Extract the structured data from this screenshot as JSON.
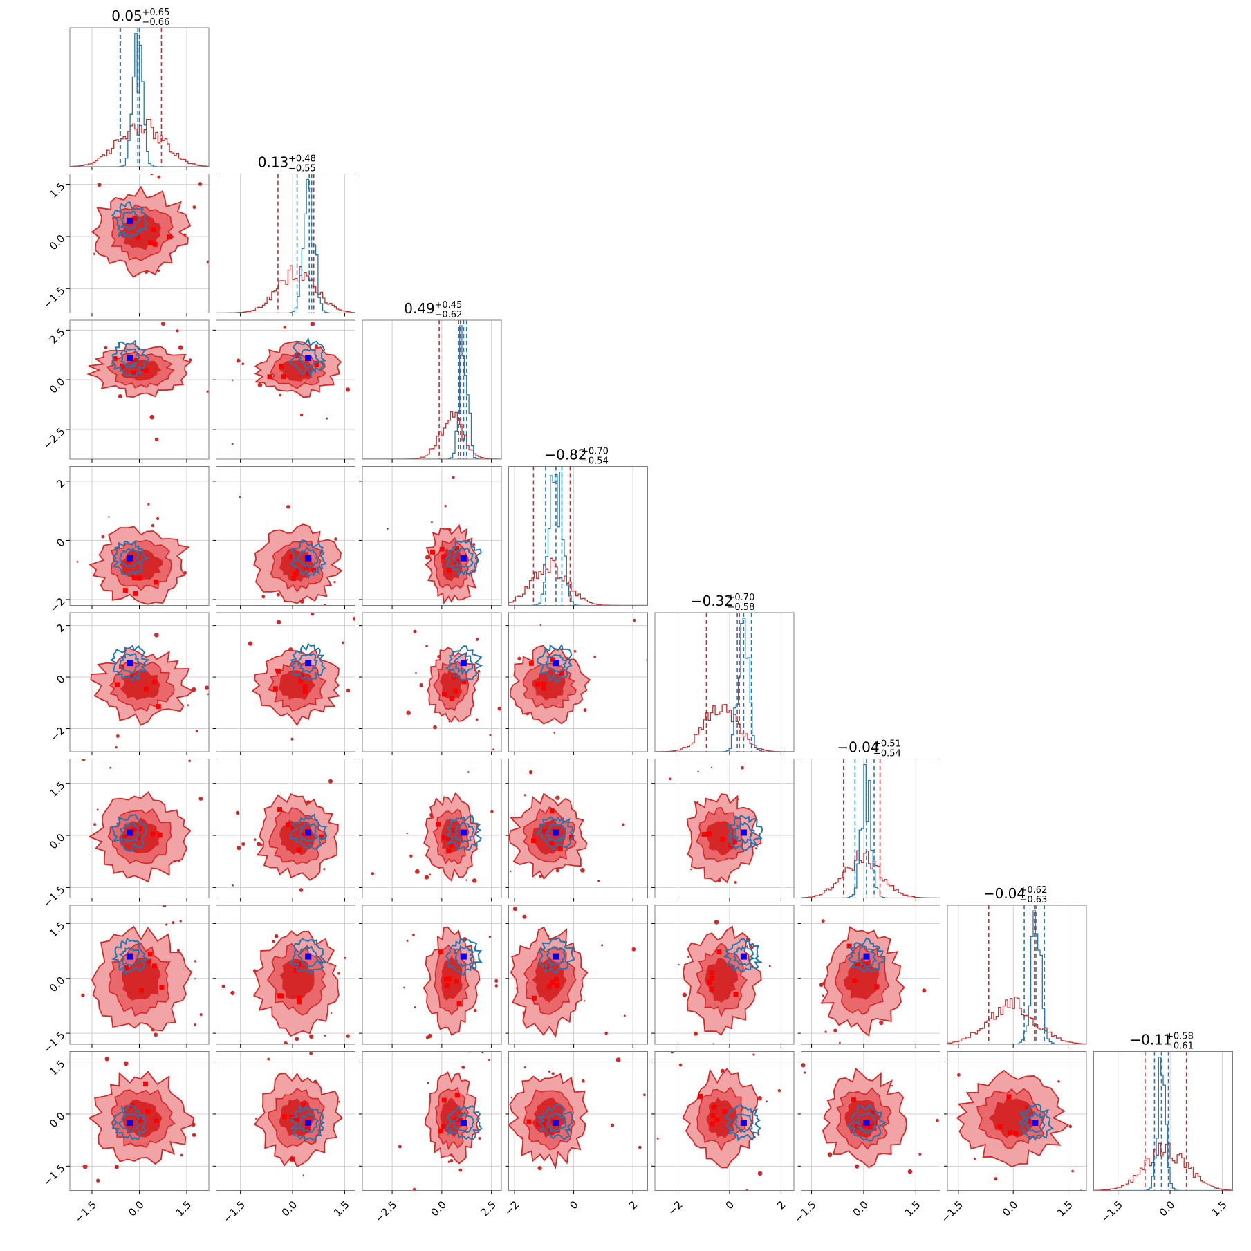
{
  "chart_data": {
    "type": "corner",
    "dimensions": 8,
    "grid": true,
    "colors": {
      "red_line": "#d62728",
      "red_fill_outer": "#f0a4a5",
      "red_fill_mid": "#e8686b",
      "red_fill_inner": "#d62728",
      "blue_line": "#1f77b4",
      "truth_marker": "#0000ff",
      "red_marker": "#ff0000",
      "grid": "#d0d0d0"
    },
    "params": [
      {
        "title": "0.05",
        "sup": "+0.65",
        "sub": "−0.66",
        "center": 0.05,
        "q_red": [
          -0.61,
          0.7
        ],
        "q_blue": [
          -0.6,
          -0.05,
          0.0
        ],
        "xlim": [
          -2.2,
          2.2
        ],
        "truth": -0.3,
        "red_sd": 0.7,
        "blue_sd": 0.15,
        "ticks": [
          -1.5,
          0.0,
          1.5
        ],
        "tick_labels": [
          "−1.5",
          "0.0",
          "1.5"
        ]
      },
      {
        "title": "0.13",
        "sup": "+0.48",
        "sub": "−0.55",
        "center": 0.13,
        "q_red": [
          -0.42,
          0.61
        ],
        "q_blue": [
          0.13,
          0.48,
          0.55
        ],
        "xlim": [
          -2.2,
          1.8
        ],
        "truth": 0.45,
        "red_sd": 0.55,
        "blue_sd": 0.15,
        "ticks": [
          -1.5,
          0.0,
          1.5
        ],
        "tick_labels": [
          "−1.5",
          "0.0",
          "1.5"
        ]
      },
      {
        "title": "0.49",
        "sup": "+0.45",
        "sub": "−0.62",
        "center": 0.49,
        "q_red": [
          -0.13,
          0.94
        ],
        "q_blue": [
          0.85,
          1.1,
          1.25
        ],
        "xlim": [
          -4.0,
          3.0
        ],
        "truth": 1.1,
        "red_sd": 0.6,
        "blue_sd": 0.2,
        "ticks": [
          -2.5,
          0.0,
          2.5
        ],
        "tick_labels": [
          "−2.5",
          "0.0",
          "2.5"
        ]
      },
      {
        "title": "−0.82",
        "sup": "+0.70",
        "sub": "−0.54",
        "center": -0.82,
        "q_red": [
          -1.36,
          -0.12
        ],
        "q_blue": [
          -0.95,
          -0.6,
          -0.4
        ],
        "xlim": [
          -2.2,
          2.5
        ],
        "truth": -0.6,
        "red_sd": 0.6,
        "blue_sd": 0.2,
        "ticks": [
          -2,
          0,
          2
        ],
        "tick_labels": [
          "−2",
          "0",
          "2"
        ]
      },
      {
        "title": "−0.32",
        "sup": "+0.70",
        "sub": "−0.58",
        "center": -0.32,
        "q_red": [
          -0.9,
          0.38
        ],
        "q_blue": [
          0.3,
          0.55,
          0.85
        ],
        "xlim": [
          -2.9,
          2.5
        ],
        "truth": 0.55,
        "red_sd": 0.65,
        "blue_sd": 0.2,
        "ticks": [
          -2,
          0,
          2
        ],
        "tick_labels": [
          "−2",
          "0",
          "2"
        ]
      },
      {
        "title": "−0.04",
        "sup": "+0.51",
        "sub": "−0.54",
        "center": -0.04,
        "q_red": [
          -0.58,
          0.47
        ],
        "q_blue": [
          -0.25,
          0.08,
          0.3
        ],
        "xlim": [
          -1.8,
          2.2
        ],
        "truth": 0.08,
        "red_sd": 0.55,
        "blue_sd": 0.15,
        "ticks": [
          -1.5,
          0.0,
          1.5
        ],
        "tick_labels": [
          "−1.5",
          "0.0",
          "1.5"
        ]
      },
      {
        "title": "−0.04",
        "sup": "+0.62",
        "sub": "−0.63",
        "center": -0.04,
        "q_red": [
          -0.67,
          0.58
        ],
        "q_blue": [
          0.3,
          0.62,
          0.85
        ],
        "xlim": [
          -1.8,
          2.0
        ],
        "truth": 0.6,
        "red_sd": 0.65,
        "blue_sd": 0.15,
        "ticks": [
          -1.5,
          0.0,
          1.5
        ],
        "tick_labels": [
          "−1.5",
          "0.0",
          "1.5"
        ]
      },
      {
        "title": "−0.11",
        "sup": "+0.58",
        "sub": "−0.61",
        "center": -0.11,
        "q_red": [
          -0.72,
          0.47
        ],
        "q_blue": [
          -0.45,
          -0.25,
          -0.05
        ],
        "xlim": [
          -2.2,
          1.8
        ],
        "truth": -0.25,
        "red_sd": 0.6,
        "blue_sd": 0.12,
        "ticks": [
          -1.5,
          0.0,
          1.5
        ],
        "tick_labels": [
          "−1.5",
          "0.0",
          "1.5"
        ]
      }
    ]
  }
}
